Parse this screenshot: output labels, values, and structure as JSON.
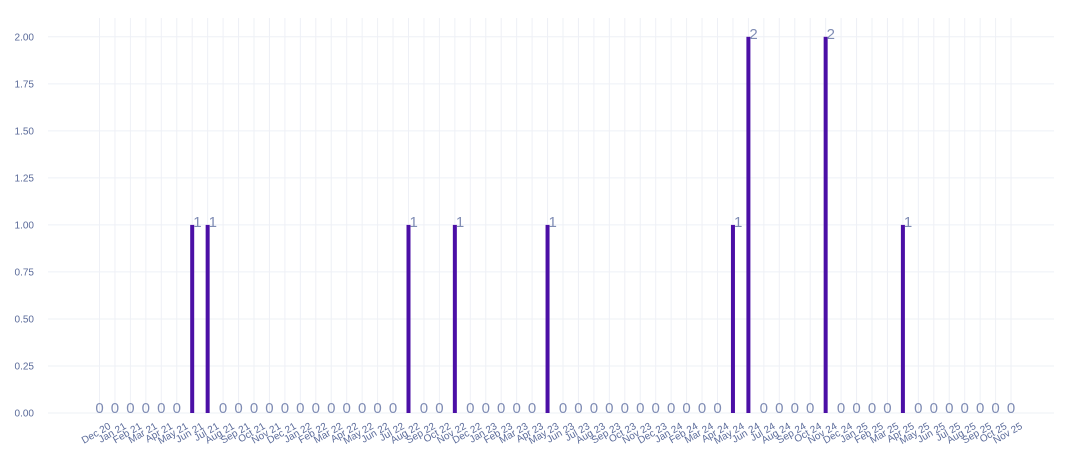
{
  "chart_data": {
    "type": "bar",
    "title": "",
    "xlabel": "",
    "ylabel": "",
    "ylim": [
      0,
      2.1
    ],
    "yticks": [
      "0.00",
      "0.25",
      "0.50",
      "0.75",
      "1.00",
      "1.25",
      "1.50",
      "1.75",
      "2.00"
    ],
    "grid": true,
    "bar_color": "#4b0fa6",
    "categories": [
      "Dec 20",
      "Jan 21",
      "Feb 21",
      "Mar 21",
      "Apr 21",
      "May 21",
      "Jun 21",
      "Jul 21",
      "Aug 21",
      "Sep 21",
      "Oct 21",
      "Nov 21",
      "Dec 21",
      "Jan 22",
      "Feb 22",
      "Mar 22",
      "Apr 22",
      "May 22",
      "Jun 22",
      "Jul 22",
      "Aug 22",
      "Sep 22",
      "Oct 22",
      "Nov 22",
      "Dec 22",
      "Jan 23",
      "Feb 23",
      "Mar 23",
      "Apr 23",
      "May 23",
      "Jun 23",
      "Jul 23",
      "Aug 23",
      "Sep 23",
      "Oct 23",
      "Nov 23",
      "Dec 23",
      "Jan 24",
      "Feb 24",
      "Mar 24",
      "Apr 24",
      "May 24",
      "Jun 24",
      "Jul 24",
      "Aug 24",
      "Sep 24",
      "Oct 24",
      "Nov 24",
      "Dec 24",
      "Jan 25",
      "Feb 25",
      "Mar 25",
      "Apr 25",
      "May 25",
      "Jun 25",
      "Jul 25",
      "Aug 25",
      "Sep 25",
      "Oct 25",
      "Nov 25"
    ],
    "values": [
      0,
      0,
      0,
      0,
      0,
      0,
      1,
      1,
      0,
      0,
      0,
      0,
      0,
      0,
      0,
      0,
      0,
      0,
      0,
      0,
      1,
      0,
      0,
      1,
      0,
      0,
      0,
      0,
      0,
      1,
      0,
      0,
      0,
      0,
      0,
      0,
      0,
      0,
      0,
      0,
      0,
      1,
      2,
      0,
      0,
      0,
      0,
      2,
      0,
      0,
      0,
      0,
      1,
      0,
      0,
      0,
      0,
      0,
      0,
      0
    ]
  }
}
